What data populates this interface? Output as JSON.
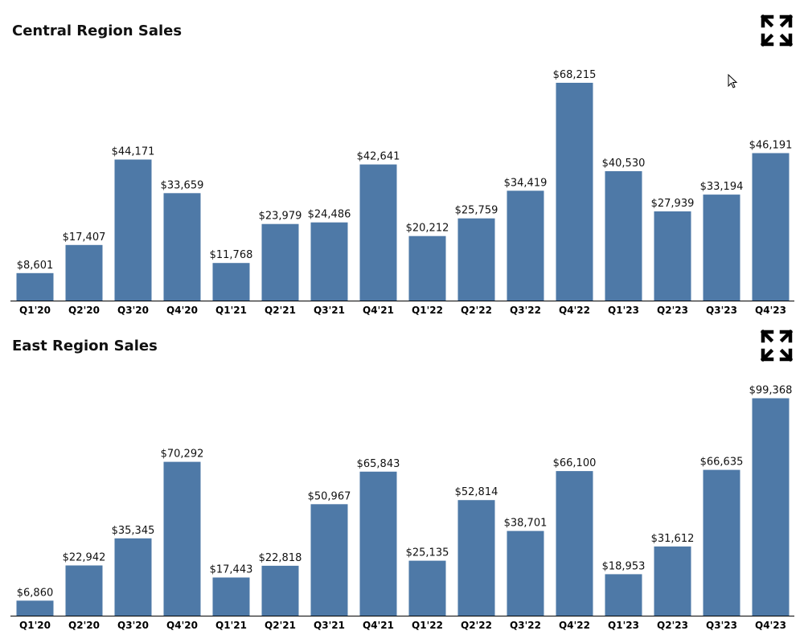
{
  "chart_data": [
    {
      "type": "bar",
      "title": "Central Region Sales",
      "xlabel": "",
      "ylabel": "",
      "ylim": [
        0,
        74000
      ],
      "grid": false,
      "color": "#4e79a7",
      "categories": [
        "Q1'20",
        "Q2'20",
        "Q3'20",
        "Q4'20",
        "Q1'21",
        "Q2'21",
        "Q3'21",
        "Q4'21",
        "Q1'22",
        "Q2'22",
        "Q3'22",
        "Q4'22",
        "Q1'23",
        "Q2'23",
        "Q3'23",
        "Q4'23"
      ],
      "values": [
        8601,
        17407,
        44171,
        33659,
        11768,
        23979,
        24486,
        42641,
        20212,
        25759,
        34419,
        68215,
        40530,
        27939,
        33194,
        46191
      ],
      "value_labels": [
        "$8,601",
        "$17,407",
        "$44,171",
        "$33,659",
        "$11,768",
        "$23,979",
        "$24,486",
        "$42,641",
        "$20,212",
        "$25,759",
        "$34,419",
        "$68,215",
        "$40,530",
        "$27,939",
        "$33,194",
        "$46,191"
      ]
    },
    {
      "type": "bar",
      "title": "East Region Sales",
      "xlabel": "",
      "ylabel": "",
      "ylim": [
        0,
        108000
      ],
      "grid": false,
      "color": "#4e79a7",
      "categories": [
        "Q1'20",
        "Q2'20",
        "Q3'20",
        "Q4'20",
        "Q1'21",
        "Q2'21",
        "Q3'21",
        "Q4'21",
        "Q1'22",
        "Q2'22",
        "Q3'22",
        "Q4'22",
        "Q1'23",
        "Q2'23",
        "Q3'23",
        "Q4'23"
      ],
      "values": [
        6860,
        22942,
        35345,
        70292,
        17443,
        22818,
        50967,
        65843,
        25135,
        52814,
        38701,
        66100,
        18953,
        31612,
        66635,
        99368
      ],
      "value_labels": [
        "$6,860",
        "$22,942",
        "$35,345",
        "$70,292",
        "$17,443",
        "$22,818",
        "$50,967",
        "$65,843",
        "$25,135",
        "$52,814",
        "$38,701",
        "$66,100",
        "$18,953",
        "$31,612",
        "$66,635",
        "$99,368"
      ]
    }
  ],
  "icons": {
    "expand": "expand-icon",
    "cursor": "mouse-cursor-icon"
  }
}
